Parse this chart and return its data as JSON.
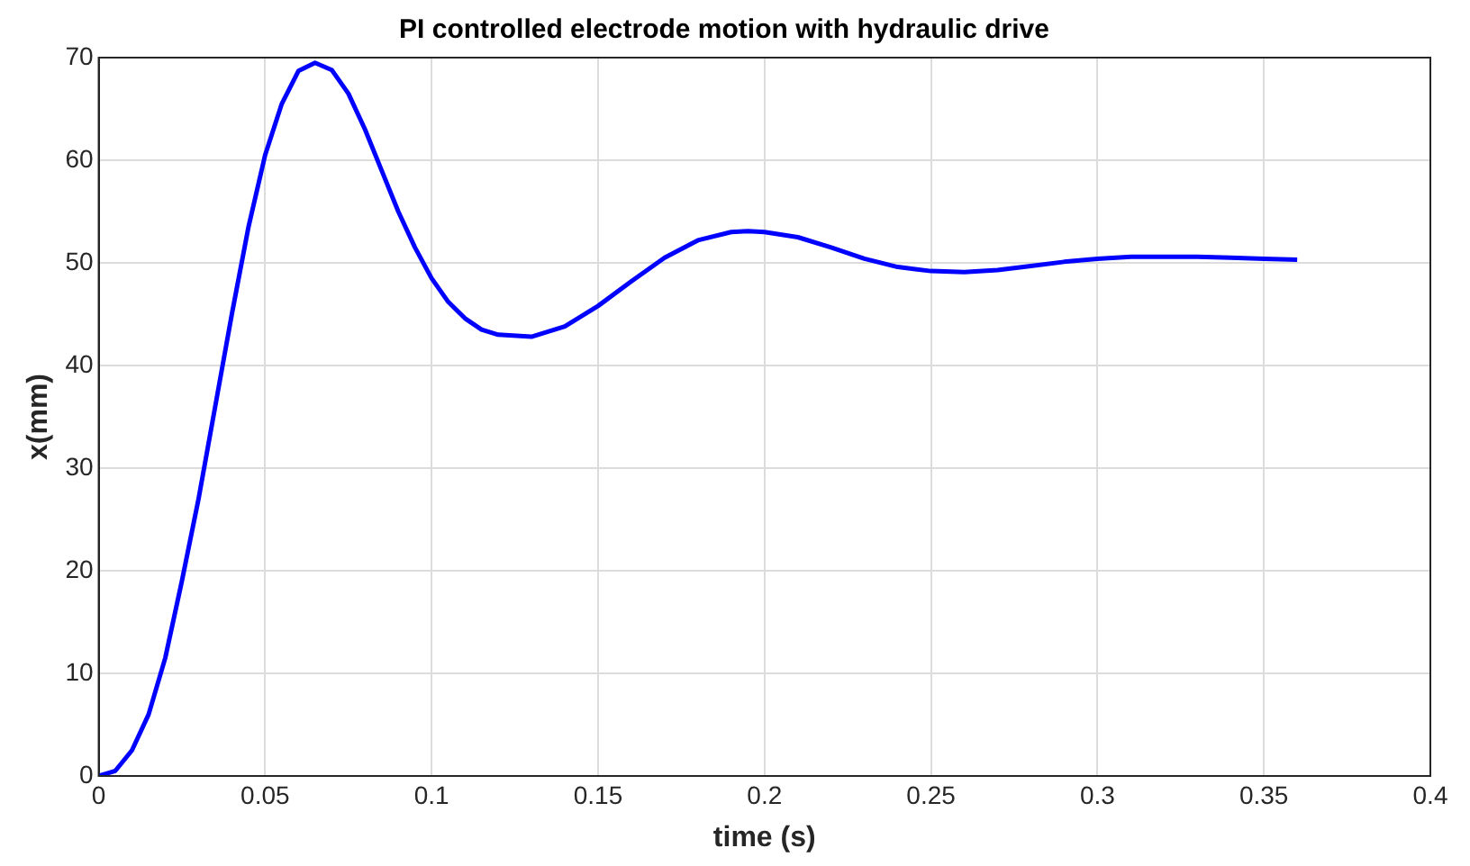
{
  "chart_data": {
    "type": "line",
    "title": "PI controlled electrode motion with hydraulic drive",
    "xlabel": "time (s)",
    "ylabel": "x(mm)",
    "x": [
      0,
      0.005,
      0.01,
      0.015,
      0.02,
      0.025,
      0.03,
      0.035,
      0.04,
      0.045,
      0.05,
      0.055,
      0.06,
      0.065,
      0.07,
      0.075,
      0.08,
      0.085,
      0.09,
      0.095,
      0.1,
      0.105,
      0.11,
      0.115,
      0.12,
      0.13,
      0.14,
      0.15,
      0.16,
      0.17,
      0.18,
      0.19,
      0.195,
      0.2,
      0.21,
      0.22,
      0.23,
      0.24,
      0.25,
      0.26,
      0.27,
      0.28,
      0.29,
      0.3,
      0.31,
      0.32,
      0.33,
      0.34,
      0.35,
      0.36
    ],
    "series": [
      {
        "color": "#0000ff",
        "values": [
          0,
          0.5,
          2.5,
          6,
          11.5,
          19,
          27,
          36,
          45,
          53.5,
          60.5,
          65.5,
          68.7,
          69.5,
          68.8,
          66.5,
          63,
          59,
          55,
          51.5,
          48.5,
          46.2,
          44.6,
          43.5,
          43,
          42.8,
          43.8,
          45.8,
          48.2,
          50.5,
          52.2,
          53,
          53.1,
          53,
          52.5,
          51.5,
          50.4,
          49.6,
          49.2,
          49.1,
          49.3,
          49.7,
          50.1,
          50.4,
          50.6,
          50.6,
          50.6,
          50.5,
          50.4,
          50.3
        ]
      }
    ],
    "xlim": [
      0,
      0.4
    ],
    "xticks": [
      0,
      0.05,
      0.1,
      0.15,
      0.2,
      0.25,
      0.3,
      0.35,
      0.4
    ],
    "ylim": [
      0,
      70
    ],
    "yticks": [
      0,
      10,
      20,
      30,
      40,
      50,
      60,
      70
    ],
    "grid": true,
    "legend": false,
    "marker": "none",
    "line_style": "solid"
  }
}
